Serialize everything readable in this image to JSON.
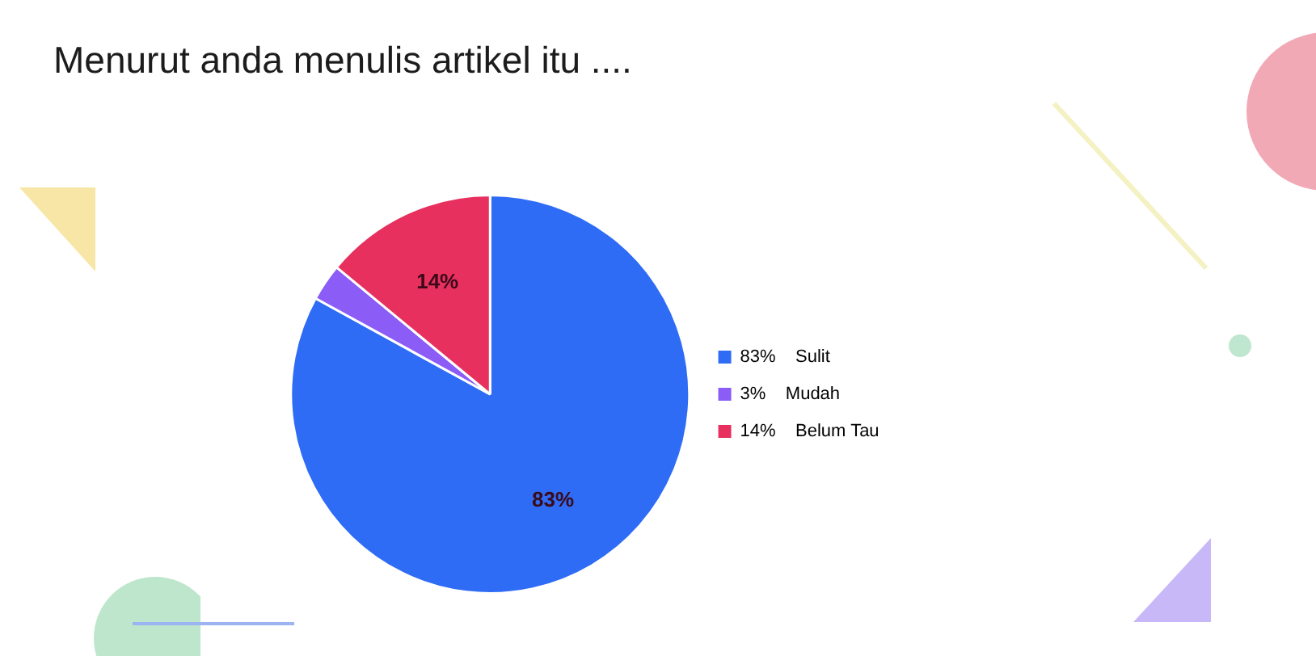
{
  "chart_data": {
    "type": "pie",
    "title": "Menurut anda menulis artikel itu ....",
    "categories": [
      "Sulit",
      "Mudah",
      "Belum Tau"
    ],
    "values": [
      83,
      3,
      14
    ],
    "value_labels": [
      "83%",
      "3%",
      "14%"
    ],
    "colors": [
      "#2f6cf6",
      "#8b5cf6",
      "#e8305f"
    ],
    "legend": "right"
  }
}
